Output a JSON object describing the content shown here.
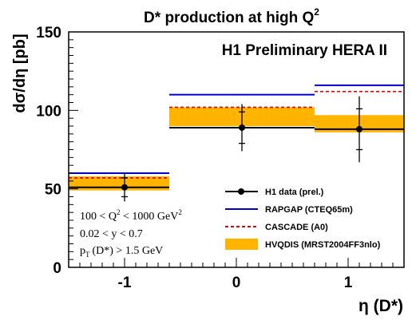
{
  "chart_data": {
    "type": "scatter",
    "title_main": "D* production at high Q",
    "title_sup": "2",
    "experiment_label": "H1 Preliminary HERA II",
    "ylabel": "dσ/dη [pb]",
    "xlabel": "η (D*)",
    "xlim": [
      -1.5,
      1.5
    ],
    "ylim": [
      0,
      150
    ],
    "x_ticks": [
      "-1",
      "0",
      "1"
    ],
    "y_ticks": [
      "0",
      "50",
      "100",
      "150"
    ],
    "bins": [
      [
        -1.5,
        -0.6
      ],
      [
        -0.6,
        0.7
      ],
      [
        0.7,
        1.5
      ]
    ],
    "series": [
      {
        "name": "H1 data (prel.)",
        "kind": "points",
        "color": "#000000",
        "x": [
          -1.0,
          0.05,
          1.1
        ],
        "y": [
          51,
          89,
          88
        ],
        "err_stat": [
          6,
          10,
          13
        ],
        "err_tot": [
          9,
          15,
          21
        ]
      },
      {
        "name": "RAPGAP (CTEQ65m)",
        "kind": "line",
        "color": "#0000cc",
        "values": [
          60,
          110,
          116
        ]
      },
      {
        "name": "CASCADE (A0)",
        "kind": "dashed",
        "color": "#e00000",
        "values": [
          57,
          102,
          112
        ]
      },
      {
        "name": "HVQDIS (MRST2004FF3nlo)",
        "kind": "band",
        "color": "#ffb400",
        "low": [
          49,
          90,
          86
        ],
        "high": [
          58,
          102,
          97
        ]
      }
    ],
    "cuts": {
      "line1_a": "100 < Q",
      "line1_sup": "2",
      "line1_b": " < 1000 GeV",
      "line1_sup2": "2",
      "line2": "0.02 < y < 0.7",
      "line3_a": "p",
      "line3_sub": "T",
      "line3_b": "(D*) > 1.5 GeV"
    }
  }
}
